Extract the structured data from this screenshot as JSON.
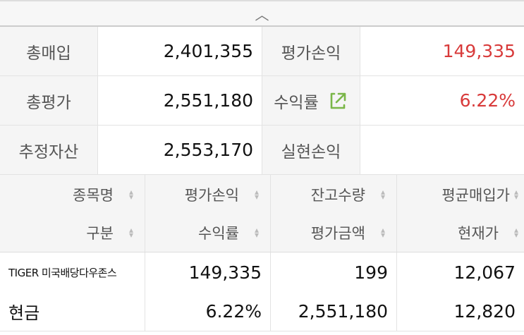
{
  "summary": {
    "rows": [
      {
        "l1": "총매입",
        "v1": "2,401,355",
        "l2": "평가손익",
        "v2": "149,335"
      },
      {
        "l1": "총평가",
        "v1": "2,551,180",
        "l2": "수익률",
        "v2": "6.22%"
      },
      {
        "l1": "추정자산",
        "v1": "2,553,170",
        "l2": "실현손익",
        "v2": ""
      }
    ]
  },
  "colors": {
    "positive": "#d83a3a",
    "current_price": "#3a8ee0",
    "accent": "#7ab648"
  },
  "table": {
    "headers_top": [
      "종목명",
      "평가손익",
      "잔고수량",
      "평균매입가"
    ],
    "headers_bottom": [
      "구분",
      "수익률",
      "평가금액",
      "현재가"
    ],
    "rows": [
      {
        "name": "TIGER 미국배당다우존스",
        "type": "현금",
        "pnl": "149,335",
        "rate": "6.22%",
        "qty": "199",
        "eval": "2,551,180",
        "avg": "12,067",
        "cur": "12,820"
      }
    ]
  }
}
